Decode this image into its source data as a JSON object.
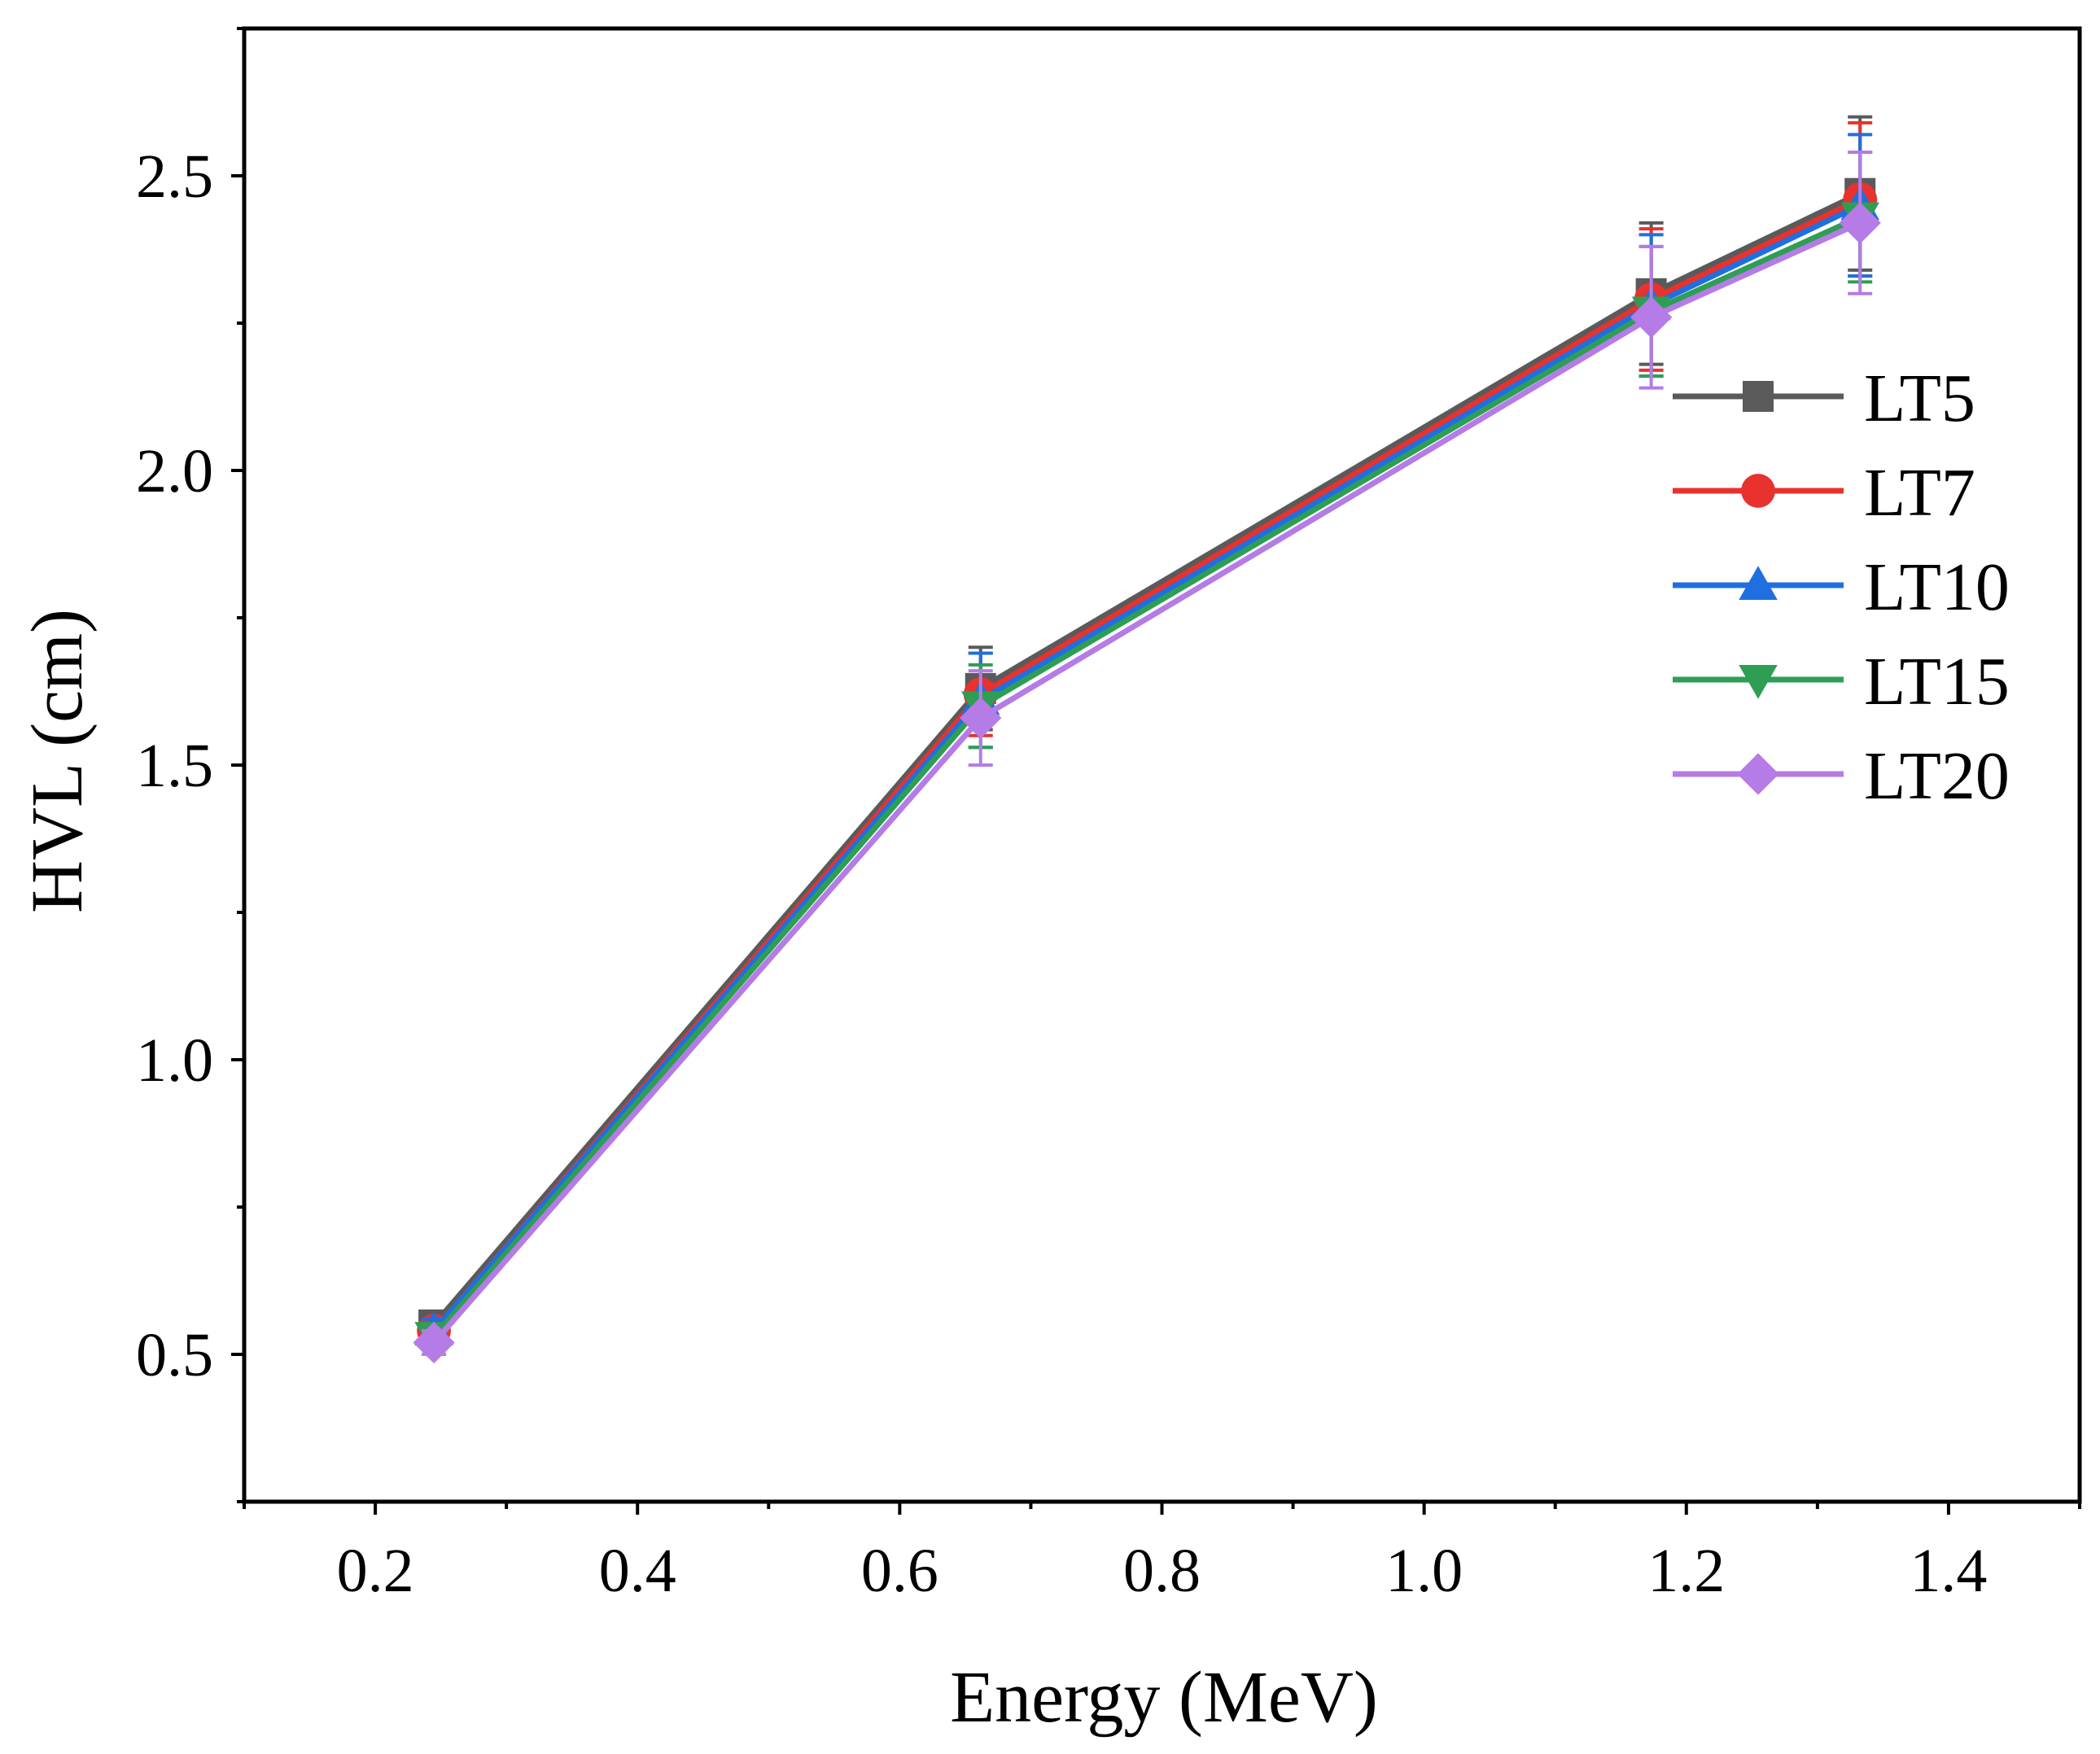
{
  "chart_data": {
    "type": "line",
    "title": "",
    "xlabel": "Energy (MeV)",
    "ylabel": "HVL (cm)",
    "xlim": [
      0.1,
      1.5
    ],
    "ylim": [
      0.25,
      2.75
    ],
    "x": [
      0.2447,
      0.6617,
      1.1732,
      1.3325
    ],
    "xticks": [
      0.2,
      0.4,
      0.6,
      0.8,
      1.0,
      1.2,
      1.4
    ],
    "xtick_labels": [
      "0.2",
      "0.4",
      "0.6",
      "0.8",
      "1.0",
      "1.2",
      "1.4"
    ],
    "yticks": [
      0.5,
      1.0,
      1.5,
      2.0,
      2.5
    ],
    "ytick_labels": [
      "0.5",
      "1.0",
      "1.5",
      "2.0",
      "2.5"
    ],
    "legend_position": "upper-right",
    "series": [
      {
        "name": "LT5",
        "color": "#5a5a5a",
        "marker": "square",
        "values": [
          0.55,
          1.63,
          2.3,
          2.47
        ],
        "errors": [
          0.02,
          0.07,
          0.12,
          0.13
        ]
      },
      {
        "name": "LT7",
        "color": "#e8322e",
        "marker": "circle",
        "values": [
          0.54,
          1.62,
          2.29,
          2.46
        ],
        "errors": [
          0.02,
          0.07,
          0.12,
          0.13
        ]
      },
      {
        "name": "LT10",
        "color": "#1f6fe0",
        "marker": "triangle-up",
        "values": [
          0.54,
          1.61,
          2.28,
          2.45
        ],
        "errors": [
          0.02,
          0.08,
          0.12,
          0.12
        ]
      },
      {
        "name": "LT15",
        "color": "#2e9e55",
        "marker": "triangle-down",
        "values": [
          0.53,
          1.6,
          2.27,
          2.43
        ],
        "errors": [
          0.02,
          0.07,
          0.11,
          0.11
        ]
      },
      {
        "name": "LT20",
        "color": "#b57be6",
        "marker": "diamond",
        "values": [
          0.52,
          1.58,
          2.26,
          2.42
        ],
        "errors": [
          0.02,
          0.08,
          0.12,
          0.12
        ]
      }
    ]
  }
}
